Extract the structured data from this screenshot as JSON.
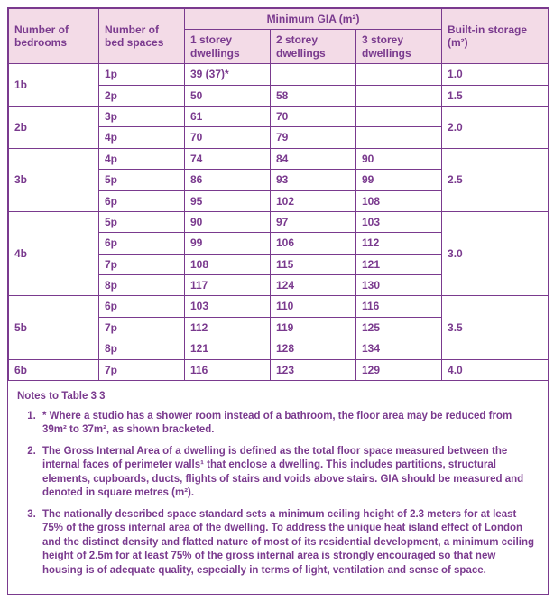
{
  "header": {
    "bedrooms_label": "Number of bedrooms",
    "bedspaces_label": "Number of bed spaces",
    "gia_group_label": "Minimum GIA (m²)",
    "storey1_label": "1 storey dwellings",
    "storey2_label": "2 storey dwellings",
    "storey3_label": "3 storey dwellings",
    "storage_label": "Built-in storage (m²)"
  },
  "colors": {
    "border": "#7a3a8e",
    "text": "#7a3a8e",
    "header_bg": "#f3dbe7",
    "body_bg": "#ffffff"
  },
  "groups": [
    {
      "bedrooms": "1b",
      "storage": "1.0",
      "storage_rowspan": 1,
      "rows": [
        {
          "bedspaces": "1p",
          "s1": "39 (37)*",
          "s2": "",
          "s3": "",
          "storage": "1.0"
        },
        {
          "bedspaces": "2p",
          "s1": "50",
          "s2": "58",
          "s3": "",
          "storage": "1.5"
        }
      ]
    },
    {
      "bedrooms": "2b",
      "storage": "2.0",
      "storage_rowspan": 2,
      "rows": [
        {
          "bedspaces": "3p",
          "s1": "61",
          "s2": "70",
          "s3": ""
        },
        {
          "bedspaces": "4p",
          "s1": "70",
          "s2": "79",
          "s3": ""
        }
      ]
    },
    {
      "bedrooms": "3b",
      "storage": "2.5",
      "storage_rowspan": 3,
      "rows": [
        {
          "bedspaces": "4p",
          "s1": "74",
          "s2": "84",
          "s3": "90"
        },
        {
          "bedspaces": "5p",
          "s1": "86",
          "s2": "93",
          "s3": "99"
        },
        {
          "bedspaces": "6p",
          "s1": "95",
          "s2": "102",
          "s3": "108"
        }
      ]
    },
    {
      "bedrooms": "4b",
      "storage": "3.0",
      "storage_rowspan": 4,
      "rows": [
        {
          "bedspaces": "5p",
          "s1": "90",
          "s2": "97",
          "s3": "103"
        },
        {
          "bedspaces": "6p",
          "s1": "99",
          "s2": "106",
          "s3": "112"
        },
        {
          "bedspaces": "7p",
          "s1": "108",
          "s2": "115",
          "s3": "121"
        },
        {
          "bedspaces": "8p",
          "s1": "117",
          "s2": "124",
          "s3": "130"
        }
      ]
    },
    {
      "bedrooms": "5b",
      "storage": "3.5",
      "storage_rowspan": 3,
      "rows": [
        {
          "bedspaces": "6p",
          "s1": "103",
          "s2": "110",
          "s3": "116"
        },
        {
          "bedspaces": "7p",
          "s1": "112",
          "s2": "119",
          "s3": "125"
        },
        {
          "bedspaces": "8p",
          "s1": "121",
          "s2": "128",
          "s3": "134"
        }
      ]
    },
    {
      "bedrooms": "6b",
      "storage": "4.0",
      "storage_rowspan": 1,
      "rows": [
        {
          "bedspaces": "7p",
          "s1": "116",
          "s2": "123",
          "s3": "129"
        }
      ]
    }
  ],
  "notes": {
    "title": "Notes to Table 3 3",
    "items": [
      "* Where a studio has a shower room instead of a bathroom, the floor area may be reduced from 39m² to 37m², as shown bracketed.",
      "The Gross Internal Area of a dwelling is defined as the total floor space measured between the internal faces of perimeter walls¹ that enclose a dwelling.  This includes partitions, structural elements, cupboards, ducts, flights of stairs and voids above stairs.  GIA should be measured and denoted in square metres (m²).",
      "The nationally described space standard sets a minimum ceiling height of 2.3 meters for at least 75% of the gross internal area of the dwelling.  To address the unique heat island effect of London and the distinct density and flatted nature of most of its residential development, a minimum ceiling height of 2.5m for at least 75% of the gross internal area is strongly encouraged so that new housing is of adequate quality, especially in terms of light, ventilation and sense of space."
    ]
  }
}
